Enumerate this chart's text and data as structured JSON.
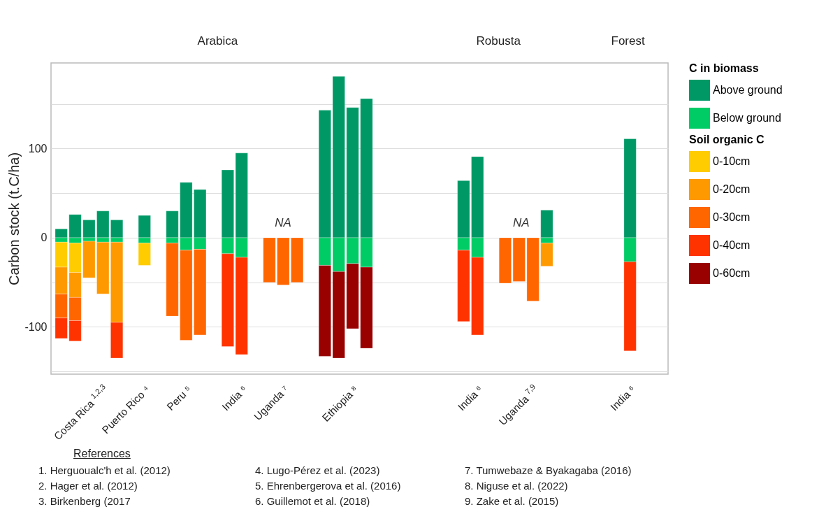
{
  "chart_data": {
    "type": "bar",
    "stacked": true,
    "ylabel": "Carbon stock (t.C/ha)",
    "legend_title": [
      "C in biomass",
      "Soil organic C"
    ],
    "legend": "right",
    "grid": "y",
    "ylim": [
      -153,
      196
    ],
    "yticks": [
      {
        "value": -150,
        "label": null
      },
      -100,
      {
        "value": -50,
        "label": null
      },
      0,
      {
        "value": 50,
        "label": null
      },
      100,
      {
        "value": 150,
        "label": null
      }
    ],
    "categories": [
      null,
      null,
      null,
      "Costa Rica $^{1,2,3}$",
      null,
      null,
      "Puerto Rico ⁴",
      null,
      null,
      "Peru ⁵",
      null,
      null,
      null,
      "India ⁶",
      null,
      null,
      "Uganda ⁷",
      null,
      null,
      null,
      null,
      "Ethiopia ⁸",
      null,
      null,
      null,
      null,
      null,
      null,
      null,
      null,
      "India ⁶",
      null,
      null,
      null,
      "Uganda $^{7,9}$",
      null,
      null,
      null,
      null,
      null,
      null,
      "India ⁶",
      null,
      null
    ],
    "series": [
      {
        "name": "Above ground",
        "color": "#009966",
        "values": [
          10,
          26,
          20,
          30,
          20,
          null,
          25,
          null,
          30,
          62,
          54,
          null,
          76,
          95,
          null,
          null,
          null,
          null,
          null,
          143,
          181,
          146,
          156,
          null,
          null,
          null,
          null,
          null,
          null,
          64,
          91,
          null,
          null,
          null,
          null,
          31,
          null,
          null,
          null,
          null,
          null,
          111,
          null,
          null
        ]
      },
      {
        "name": "Below ground",
        "color": "#00cc66",
        "values": [
          -5,
          -6,
          -4,
          -5,
          -5,
          null,
          -6,
          null,
          -6,
          -14,
          -13,
          null,
          -18,
          -22,
          null,
          null,
          null,
          null,
          null,
          -31,
          -38,
          -29,
          -33,
          null,
          null,
          null,
          null,
          null,
          null,
          -14,
          -22,
          null,
          null,
          null,
          null,
          -6,
          null,
          null,
          null,
          null,
          null,
          -27,
          null,
          null
        ]
      },
      {
        "name": "0-10cm",
        "color": "#ffcc00",
        "values": [
          -28,
          -33,
          null,
          null,
          null,
          null,
          -25,
          null,
          null,
          null,
          null,
          null,
          null,
          null,
          null,
          null,
          null,
          null,
          null,
          null,
          null,
          null,
          null,
          null,
          null,
          null,
          null,
          null,
          null,
          null,
          null,
          null,
          null,
          null,
          null,
          null,
          null,
          null,
          null,
          null,
          null,
          null,
          null,
          null
        ]
      },
      {
        "name": "0-20cm",
        "color": "#ff9900",
        "values": [
          -30,
          -28,
          -41,
          -58,
          -90,
          null,
          null,
          null,
          null,
          null,
          null,
          null,
          null,
          null,
          null,
          null,
          null,
          null,
          null,
          null,
          null,
          null,
          null,
          null,
          null,
          null,
          null,
          null,
          null,
          null,
          null,
          null,
          null,
          null,
          null,
          -26,
          null,
          null,
          null,
          null,
          null,
          null,
          null,
          null
        ]
      },
      {
        "name": "0-30cm",
        "color": "#ff6600",
        "values": [
          -27,
          -26,
          null,
          null,
          null,
          null,
          null,
          null,
          -82,
          -101,
          -96,
          null,
          null,
          null,
          null,
          -50,
          -53,
          -50,
          null,
          null,
          null,
          null,
          null,
          null,
          null,
          null,
          null,
          null,
          null,
          null,
          null,
          null,
          -51,
          -49,
          -71,
          null,
          null,
          null,
          null,
          null,
          null,
          null,
          null,
          null
        ]
      },
      {
        "name": "0-40cm",
        "color": "#ff3300",
        "values": [
          -23,
          -23,
          null,
          null,
          -40,
          null,
          null,
          null,
          null,
          null,
          null,
          null,
          -104,
          -109,
          null,
          null,
          null,
          null,
          null,
          null,
          null,
          null,
          null,
          null,
          null,
          null,
          null,
          null,
          null,
          -80,
          -87,
          null,
          null,
          null,
          null,
          null,
          null,
          null,
          null,
          null,
          null,
          -100,
          null,
          null
        ]
      },
      {
        "name": "0-60cm",
        "color": "#990000",
        "values": [
          null,
          null,
          null,
          null,
          null,
          null,
          null,
          null,
          null,
          null,
          null,
          null,
          null,
          null,
          null,
          null,
          null,
          null,
          null,
          -102,
          -97,
          -73,
          -91,
          null,
          null,
          null,
          null,
          null,
          null,
          null,
          null,
          null,
          null,
          null,
          null,
          null,
          null,
          null,
          null,
          null,
          null,
          null,
          null,
          null
        ]
      }
    ],
    "annotations": [
      "Arabica",
      "Robusta",
      "Forest",
      "NA",
      "NA",
      "References",
      "1. Herguoualc'h et al. (2012)",
      "2. Hager et al. (2012)",
      "3. Birkenberg (2017",
      "4. Lugo-Pérez et al. (2023)",
      "5. Ehrenbergerova et al. (2016)",
      "6. Guillemot et al. (2018)",
      "7. Tumwebaze & Byakagaba (2016)",
      "8. Niguse et al. (2022)",
      "9. Zake et al. (2015)"
    ]
  }
}
